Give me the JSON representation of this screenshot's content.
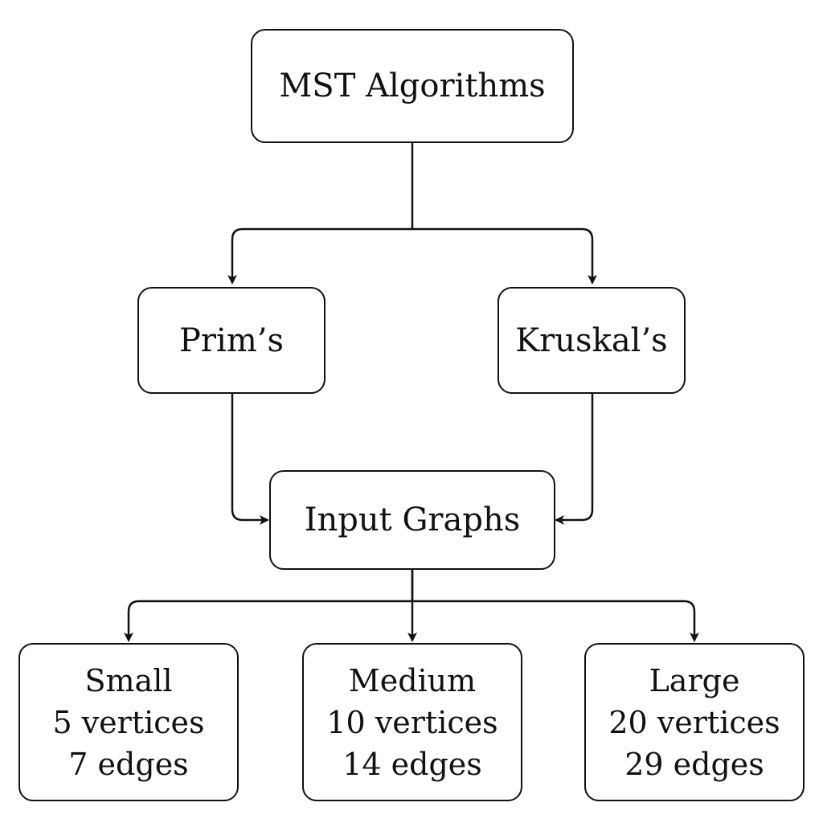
{
  "diagram": {
    "root": {
      "label": "MST Algorithms"
    },
    "algorithms": [
      {
        "label": "Prim’s"
      },
      {
        "label": "Kruskal’s"
      }
    ],
    "input": {
      "label": "Input Graphs"
    },
    "graphs": [
      {
        "name": "Small",
        "vertices": "5 vertices",
        "edges": "7 edges"
      },
      {
        "name": "Medium",
        "vertices": "10 vertices",
        "edges": "14 edges"
      },
      {
        "name": "Large",
        "vertices": "20 vertices",
        "edges": "29 edges"
      }
    ],
    "colors": {
      "stroke": "#111111",
      "background": "#ffffff"
    }
  }
}
